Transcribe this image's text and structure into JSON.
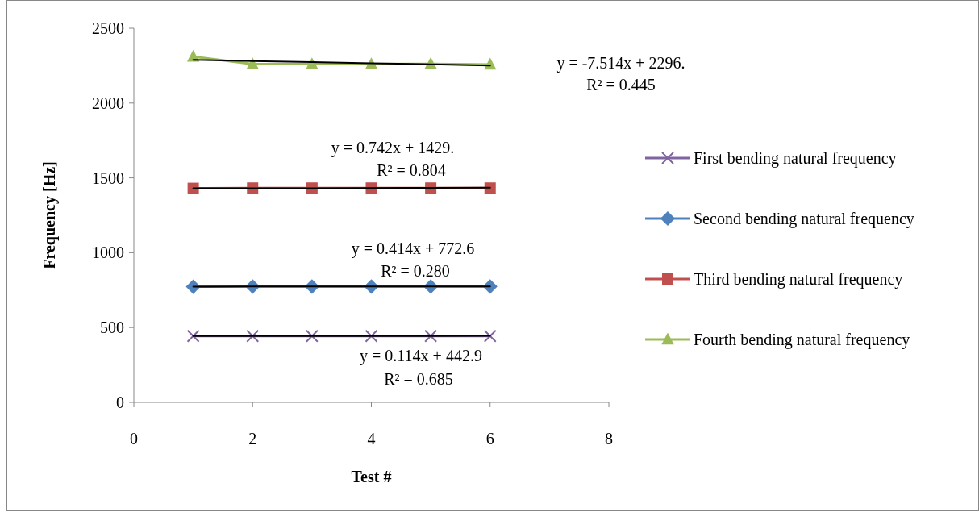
{
  "chart_data": {
    "type": "line",
    "xlabel": "Test #",
    "ylabel": "Frequency [Hz]",
    "xlim": [
      0,
      8
    ],
    "xticks": [
      0,
      2,
      4,
      6,
      8
    ],
    "ylim": [
      0,
      2500
    ],
    "yticks": [
      0,
      500,
      1000,
      1500,
      2000,
      2500
    ],
    "grid": false,
    "legend": "right",
    "line_style": "solid",
    "x": [
      1,
      2,
      3,
      4,
      5,
      6
    ],
    "series": [
      {
        "name": "First bending natural frequency",
        "color": "#8064a2",
        "marker": "cross",
        "values": [
          443,
          443,
          443,
          443,
          443,
          443
        ]
      },
      {
        "name": "Second bending natural frequency",
        "color": "#4f81bd",
        "marker": "diamond",
        "values": [
          773,
          774,
          774,
          774,
          774,
          774
        ]
      },
      {
        "name": "Third bending natural frequency",
        "color": "#c0504d",
        "marker": "square",
        "values": [
          1430,
          1432,
          1432,
          1432,
          1432,
          1432
        ]
      },
      {
        "name": "Fourth bending natural frequency",
        "color": "#9bbb59",
        "marker": "triangle",
        "values": [
          2310,
          2260,
          2260,
          2260,
          2262,
          2258
        ]
      },
      {
        "type": "line",
        "color": "#000000",
        "marker": "none",
        "values": [
          443,
          443,
          443,
          443,
          443,
          444
        ]
      },
      {
        "type": "line",
        "color": "#000000",
        "marker": "none",
        "values": [
          773,
          774,
          774,
          774,
          775,
          775
        ]
      },
      {
        "type": "line",
        "color": "#000000",
        "marker": "none",
        "values": [
          1430,
          1431,
          1431,
          1432,
          1433,
          1434
        ]
      },
      {
        "type": "line",
        "color": "#000000",
        "marker": "none",
        "values": [
          2289,
          2281,
          2274,
          2266,
          2259,
          2251
        ]
      }
    ],
    "annotations": [
      "y = -7.514x + 2296.",
      "R² = 0.445",
      "y = 0.742x + 1429.",
      "R² = 0.804",
      "y = 0.414x + 772.6",
      "R² = 0.280",
      "y = 0.114x + 442.9",
      "R² = 0.685"
    ]
  }
}
